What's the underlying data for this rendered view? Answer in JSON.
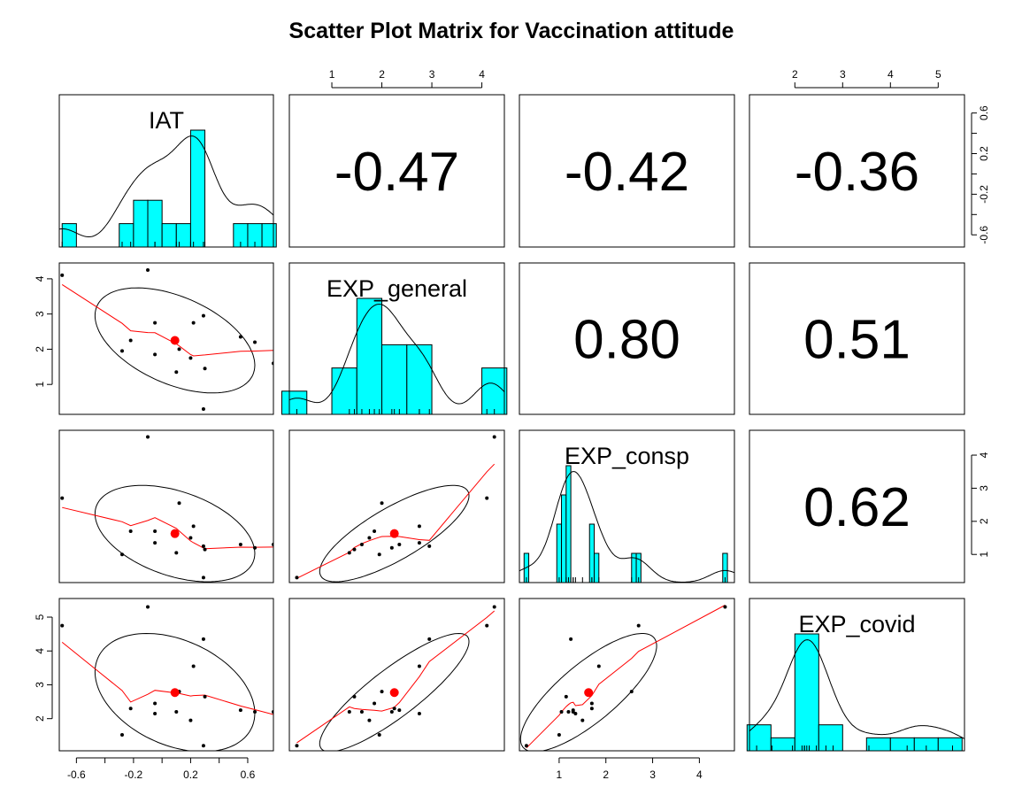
{
  "chart_data": {
    "type": "scatter",
    "title": "Scatter Plot Matrix for Vaccination attitude",
    "variables": [
      "IAT",
      "EXP_general",
      "EXP_consp",
      "EXP_covid"
    ],
    "correlations": [
      {
        "row": 0,
        "col": 1,
        "label": "-0.47"
      },
      {
        "row": 0,
        "col": 2,
        "label": "-0.42"
      },
      {
        "row": 0,
        "col": 3,
        "label": "-0.36"
      },
      {
        "row": 1,
        "col": 2,
        "label": "0.80"
      },
      {
        "row": 1,
        "col": 3,
        "label": "0.51"
      },
      {
        "row": 2,
        "col": 3,
        "label": "0.62"
      }
    ],
    "ranges": [
      [
        -0.72,
        0.78
      ],
      [
        0.15,
        4.45
      ],
      [
        0.15,
        4.75
      ],
      [
        1.05,
        5.55
      ]
    ],
    "axes": {
      "IAT": {
        "ticks": [
          "-0.6",
          "-0.2",
          "0.2",
          "0.6"
        ],
        "minor_ticks": [
          -0.6,
          -0.4,
          -0.2,
          0.0,
          0.2,
          0.4,
          0.6
        ]
      },
      "EXP_general": {
        "ticks": [
          "1",
          "2",
          "3",
          "4"
        ]
      },
      "EXP_consp": {
        "ticks": [
          "1",
          "2",
          "3",
          "4"
        ]
      },
      "EXP_covid": {
        "ticks": [
          "2",
          "3",
          "4",
          "5"
        ]
      }
    },
    "points": [
      {
        "IAT": -0.7,
        "EXP_general": 4.1,
        "EXP_consp": 2.7,
        "EXP_covid": 4.75
      },
      {
        "IAT": -0.28,
        "EXP_general": 1.95,
        "EXP_consp": 1.0,
        "EXP_covid": 1.52
      },
      {
        "IAT": -0.22,
        "EXP_general": 2.25,
        "EXP_consp": 1.7,
        "EXP_covid": 2.3
      },
      {
        "IAT": -0.1,
        "EXP_general": 4.25,
        "EXP_consp": 4.55,
        "EXP_covid": 5.3
      },
      {
        "IAT": -0.05,
        "EXP_general": 2.75,
        "EXP_consp": 1.35,
        "EXP_covid": 2.15
      },
      {
        "IAT": -0.05,
        "EXP_general": 1.85,
        "EXP_consp": 1.7,
        "EXP_covid": 2.45
      },
      {
        "IAT": 0.1,
        "EXP_general": 1.35,
        "EXP_consp": 1.05,
        "EXP_covid": 2.2
      },
      {
        "IAT": 0.12,
        "EXP_general": 2.0,
        "EXP_consp": 2.55,
        "EXP_covid": 2.8
      },
      {
        "IAT": 0.22,
        "EXP_general": 2.75,
        "EXP_consp": 1.85,
        "EXP_covid": 3.55
      },
      {
        "IAT": 0.2,
        "EXP_general": 1.75,
        "EXP_consp": 1.5,
        "EXP_covid": 1.95
      },
      {
        "IAT": 0.29,
        "EXP_general": 2.95,
        "EXP_consp": 1.25,
        "EXP_covid": 4.35
      },
      {
        "IAT": 0.29,
        "EXP_general": 0.3,
        "EXP_consp": 0.3,
        "EXP_covid": 1.2
      },
      {
        "IAT": 0.3,
        "EXP_general": 1.45,
        "EXP_consp": 1.15,
        "EXP_covid": 2.65
      },
      {
        "IAT": 0.55,
        "EXP_general": 2.35,
        "EXP_consp": 1.3,
        "EXP_covid": 2.25
      },
      {
        "IAT": 0.65,
        "EXP_general": 2.2,
        "EXP_consp": 1.2,
        "EXP_covid": 2.2
      },
      {
        "IAT": 0.78,
        "EXP_general": 1.6,
        "EXP_consp": 1.3,
        "EXP_covid": 2.2
      }
    ],
    "means": {
      "IAT": 0.09,
      "EXP_general": 2.25,
      "EXP_consp": 1.63,
      "EXP_covid": 2.77
    },
    "histograms": [
      {
        "variable": "IAT",
        "breaks": [
          -0.7,
          -0.6,
          -0.5,
          -0.4,
          -0.3,
          -0.2,
          -0.1,
          0.0,
          0.1,
          0.2,
          0.3,
          0.4,
          0.5,
          0.6,
          0.7,
          0.8
        ],
        "counts": [
          1,
          0,
          0,
          0,
          1,
          2,
          2,
          1,
          1,
          5,
          0,
          0,
          1,
          1,
          1
        ],
        "max_count": 5
      },
      {
        "variable": "EXP_general",
        "breaks": [
          0.0,
          0.5,
          1.0,
          1.5,
          2.0,
          2.5,
          3.0,
          3.5,
          4.0,
          4.5
        ],
        "counts": [
          1,
          0,
          2,
          5,
          3,
          3,
          0,
          0,
          2
        ],
        "max_count": 5
      },
      {
        "variable": "EXP_consp",
        "breaks": [
          0.25,
          0.35,
          0.95,
          1.05,
          1.15,
          1.25,
          1.35,
          1.65,
          1.75,
          1.85,
          2.55,
          2.65,
          2.75,
          4.5,
          4.6
        ],
        "counts": [
          1,
          0,
          2,
          3,
          4,
          0,
          0,
          2,
          1,
          0,
          1,
          1,
          0,
          1
        ],
        "max_count": 4
      },
      {
        "variable": "EXP_covid",
        "breaks": [
          1.0,
          1.5,
          2.0,
          2.5,
          3.0,
          3.5,
          4.0,
          4.5,
          5.0,
          5.5
        ],
        "counts": [
          2,
          1,
          9,
          2,
          0,
          1,
          1,
          1,
          1
        ],
        "max_count": 9
      }
    ],
    "colors": {
      "histogram_fill": "#00FFFF",
      "lowess": "#FF0000",
      "mean": "#FF0000",
      "points": "#000000",
      "ellipse": "#000000"
    }
  }
}
